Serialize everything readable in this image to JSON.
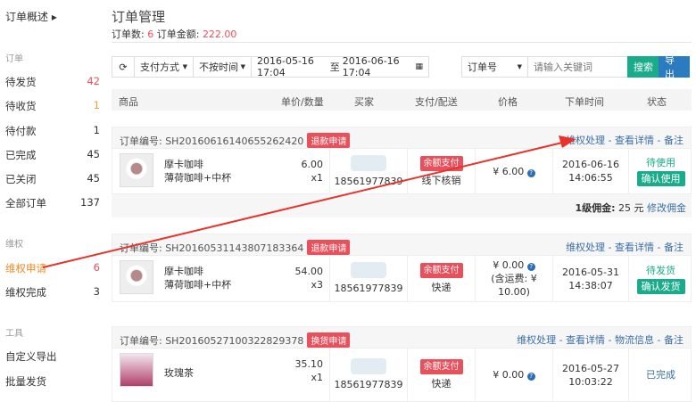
{
  "sidebar": {
    "overview": "订单概述 ▸",
    "groups": [
      {
        "label": "订单"
      },
      {
        "label": "维权"
      },
      {
        "label": "工具"
      }
    ],
    "orders": [
      {
        "label": "待发货",
        "count": "42"
      },
      {
        "label": "待收货",
        "count": "1"
      },
      {
        "label": "待付款",
        "count": "1"
      },
      {
        "label": "已完成",
        "count": "45"
      },
      {
        "label": "已关闭",
        "count": "45"
      },
      {
        "label": "全部订单",
        "count": "137"
      }
    ],
    "rights": [
      {
        "label": "维权申请",
        "count": "6"
      },
      {
        "label": "维权完成",
        "count": "3"
      }
    ],
    "tools": [
      {
        "label": "自定义导出"
      },
      {
        "label": "批量发货"
      }
    ]
  },
  "header": {
    "title": "订单管理",
    "count_label": "订单数:",
    "count": "6",
    "amount_label": "订单金额:",
    "amount": "222.00"
  },
  "toolbar": {
    "refresh_icon": "⟳",
    "pay_method": "支付方式",
    "time_filter": "不按时间",
    "date_start": "2016-05-16 17:04",
    "date_sep": "至",
    "date_end": "2016-06-16 17:04",
    "search_type": "订单号",
    "search_placeholder": "请输入关键词",
    "search": "搜索",
    "export": "导出"
  },
  "columns": [
    "商品",
    "单价/数量",
    "买家",
    "支付/配送",
    "价格",
    "下单时间",
    "状态"
  ],
  "orders": [
    {
      "no": "订单编号: SH20160616140655262420",
      "badge": "退款申请",
      "links": [
        "维权处理",
        "查看详情",
        "备注"
      ],
      "name": "摩卡咖啡",
      "spec": "薄荷咖啡+中杯",
      "price": "6.00",
      "qty": "x1",
      "phone": "18561977839",
      "pay": "余额支付",
      "ship": "线下核销",
      "total": "¥ 6.00",
      "shipfee": "",
      "date": "2016-06-16",
      "time": "14:06:55",
      "status": "待使用",
      "action": "确认使用",
      "commission_label": "1级佣金:",
      "commission": "25 元",
      "commission_link": "修改佣金"
    },
    {
      "no": "订单编号: SH20160531143807183364",
      "badge": "退款申请",
      "links": [
        "维权处理",
        "查看详情",
        "备注"
      ],
      "name": "摩卡咖啡",
      "spec": "薄荷咖啡+中杯",
      "price": "54.00",
      "qty": "x3",
      "phone": "18561977839",
      "pay": "余额支付",
      "ship": "快递",
      "total": "¥ 0.00",
      "shipfee": "(含运费: ¥ 10.00)",
      "date": "2016-05-31",
      "time": "14:38:07",
      "status": "待发货",
      "action": "确认发货"
    },
    {
      "no": "订单编号: SH20160527100322829378",
      "badge": "换货申请",
      "links": [
        "维权处理",
        "查看详情",
        "物流信息",
        "备注"
      ],
      "name": "玫瑰茶",
      "spec": "",
      "price": "35.10",
      "qty": "x1",
      "phone": "18561977839",
      "pay": "余额支付",
      "ship": "快递",
      "total": "¥ 0.00",
      "shipfee": "",
      "date": "2016-05-27",
      "time": "10:03:22",
      "status": "已完成",
      "action": ""
    }
  ],
  "colors": {
    "accent_red": "#e8505b",
    "green": "#1aac8a",
    "blue": "#2a7bc0",
    "link": "#3a6ea5",
    "active": "#f08a24"
  }
}
